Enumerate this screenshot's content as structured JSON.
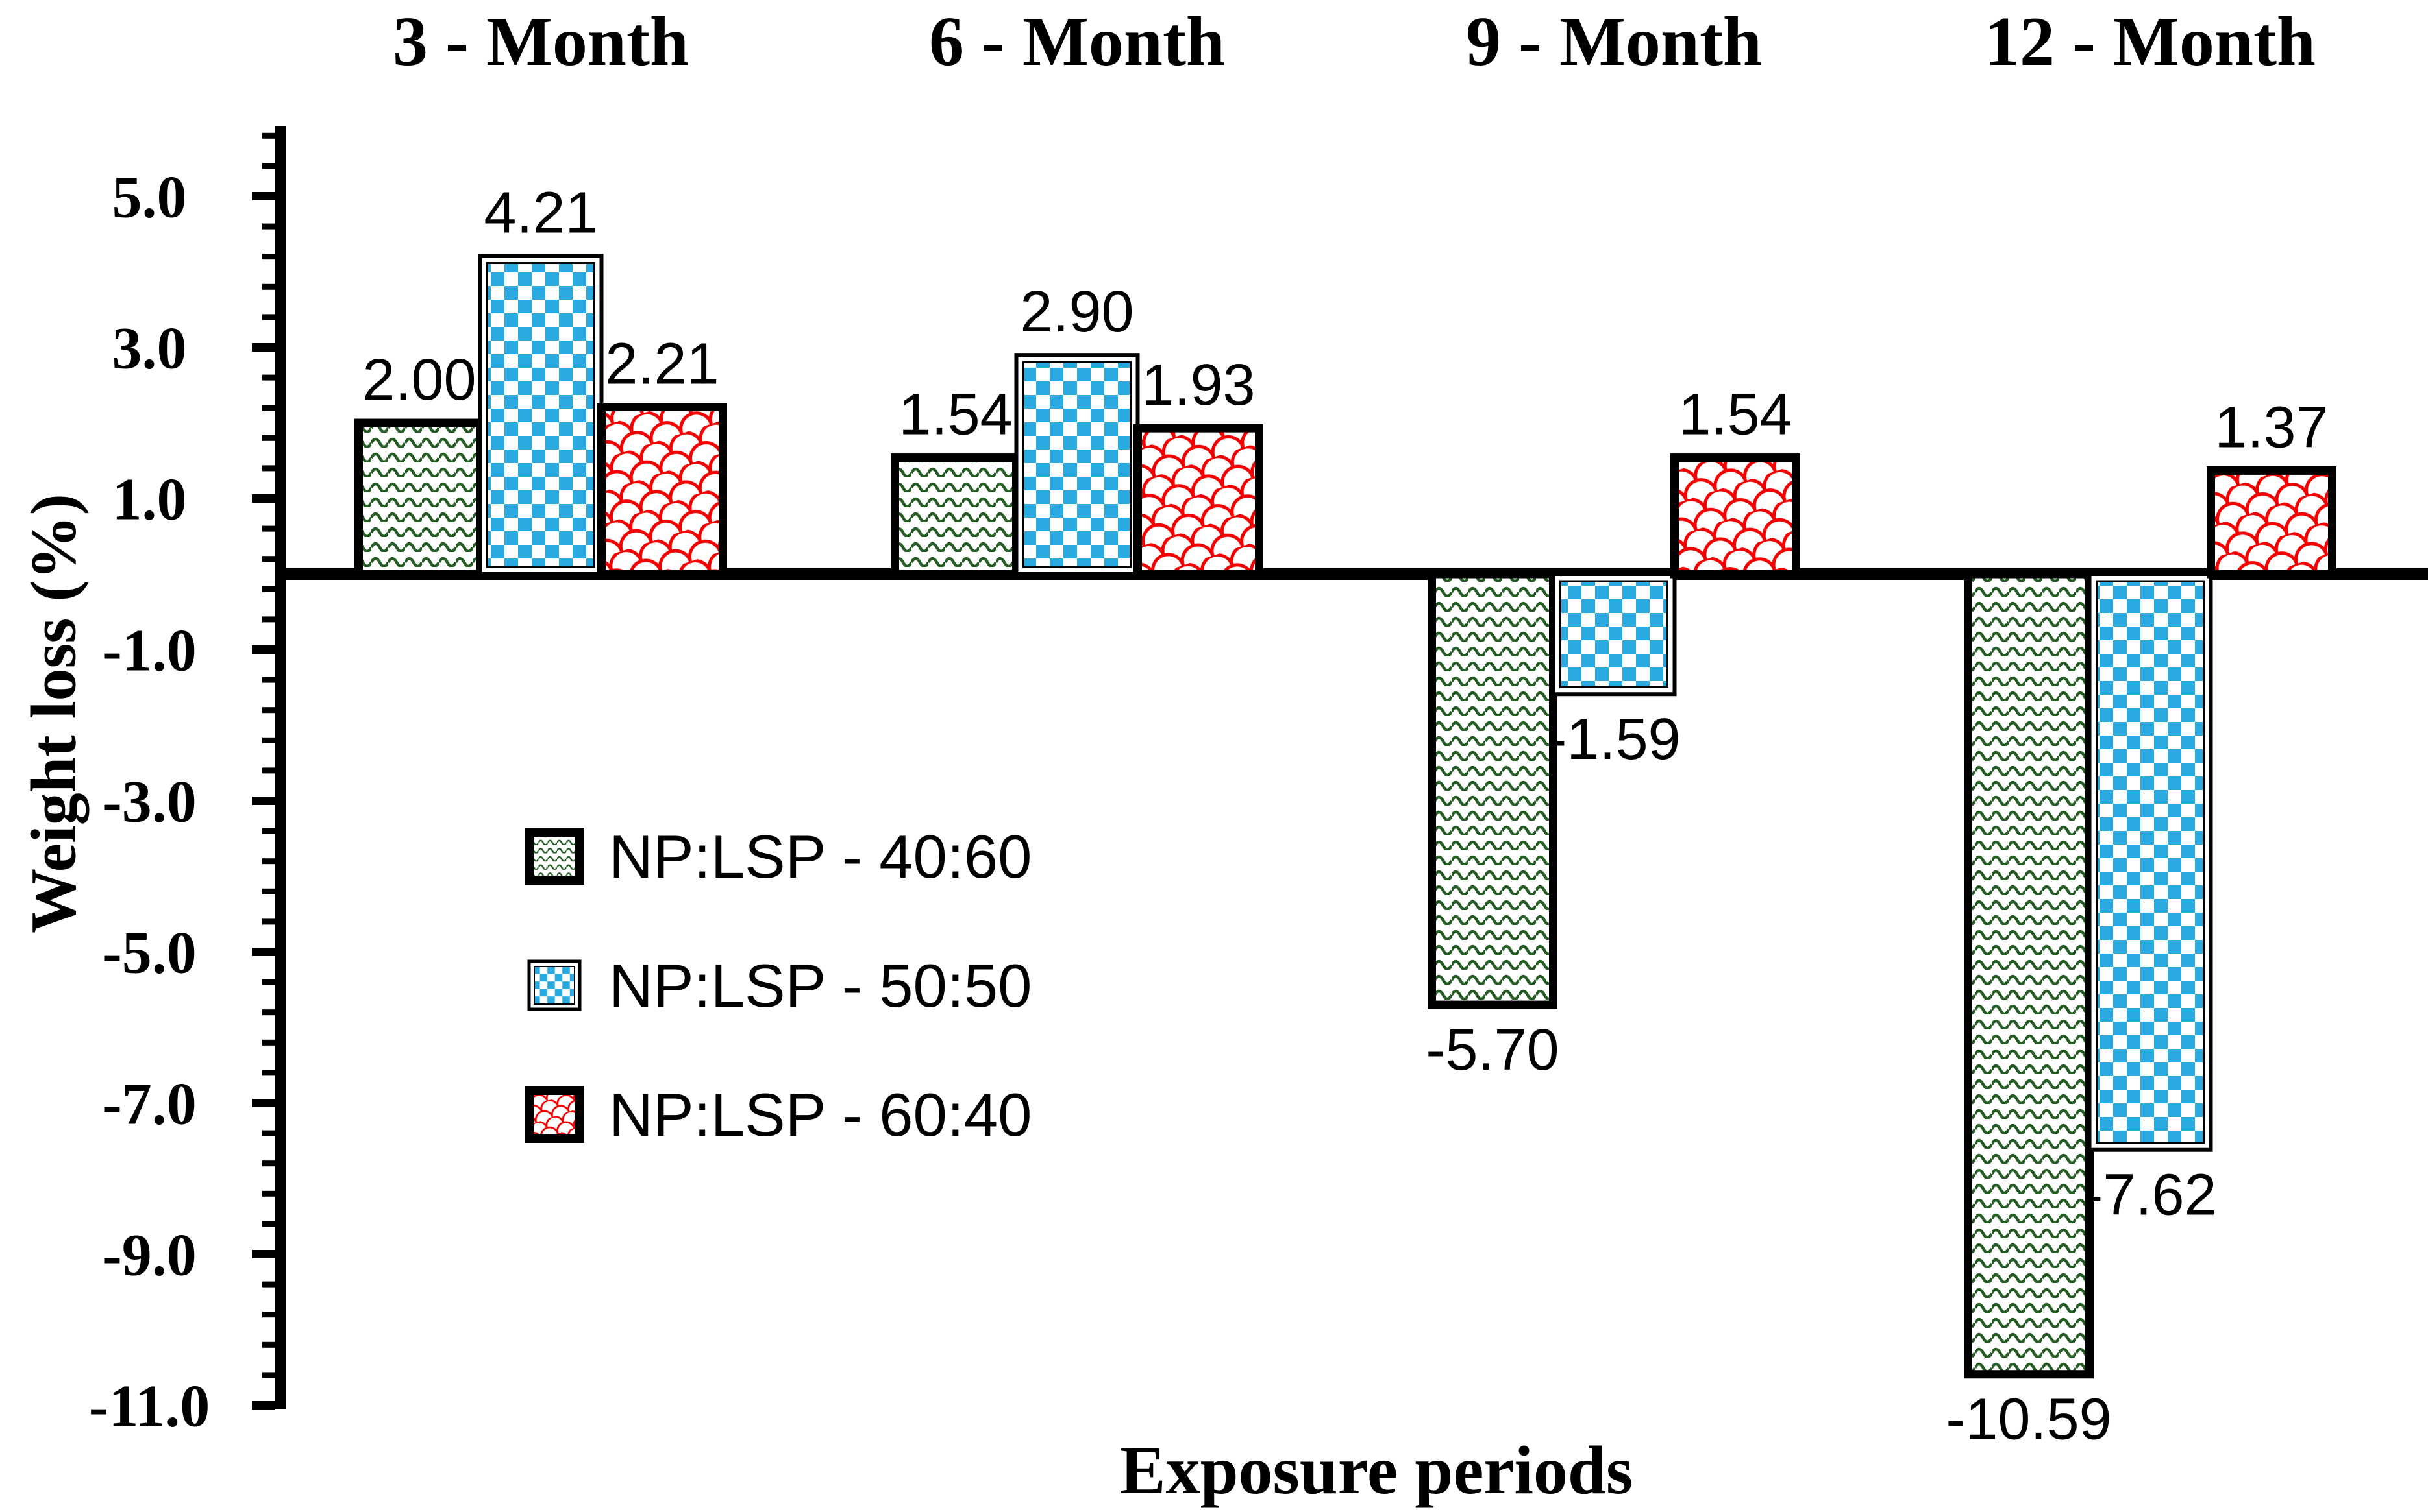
{
  "chart_data": {
    "type": "bar",
    "categories": [
      "3 - Month",
      "6 - Month",
      "9 - Month",
      "12 - Month"
    ],
    "series": [
      {
        "name": "NP:LSP - 40:60",
        "pattern": "wave",
        "border": "thick",
        "color": "#245C24",
        "values": [
          2.0,
          1.54,
          -5.7,
          -10.59
        ],
        "value_labels": [
          "2.00",
          "1.54",
          "-5.70",
          "-10.59"
        ]
      },
      {
        "name": "NP:LSP - 50:50",
        "pattern": "checker",
        "border": "double",
        "color": "#29ABE2",
        "values": [
          4.21,
          2.9,
          -1.59,
          -7.62
        ],
        "value_labels": [
          "4.21",
          "2.90",
          "-1.59",
          "-7.62"
        ]
      },
      {
        "name": "NP:LSP - 60:40",
        "pattern": "scale",
        "border": "thick",
        "color": "#F40000",
        "values": [
          2.21,
          1.93,
          1.54,
          1.37
        ],
        "value_labels": [
          "2.21",
          "1.93",
          "1.54",
          "1.37"
        ]
      }
    ],
    "xlabel": "Exposure periods",
    "ylabel": "Weight loss (%)",
    "yticks": [
      {
        "v": 5,
        "label": "5.0"
      },
      {
        "v": 3,
        "label": "3.0"
      },
      {
        "v": 1,
        "label": "1.0"
      },
      {
        "v": -1,
        "label": "-1.0"
      },
      {
        "v": -3,
        "label": "-3.0"
      },
      {
        "v": -5,
        "label": "-5.0"
      },
      {
        "v": -7,
        "label": "-7.0"
      },
      {
        "v": -9,
        "label": "-9.0"
      },
      {
        "v": -11,
        "label": "-11.0"
      }
    ],
    "y_axis_range": [
      -11.0,
      5.9
    ],
    "minor_tick_step": 0.4,
    "grid": false,
    "legend_position": "inside-left",
    "ink_color": "#000000",
    "background": "#FFFFFF"
  }
}
